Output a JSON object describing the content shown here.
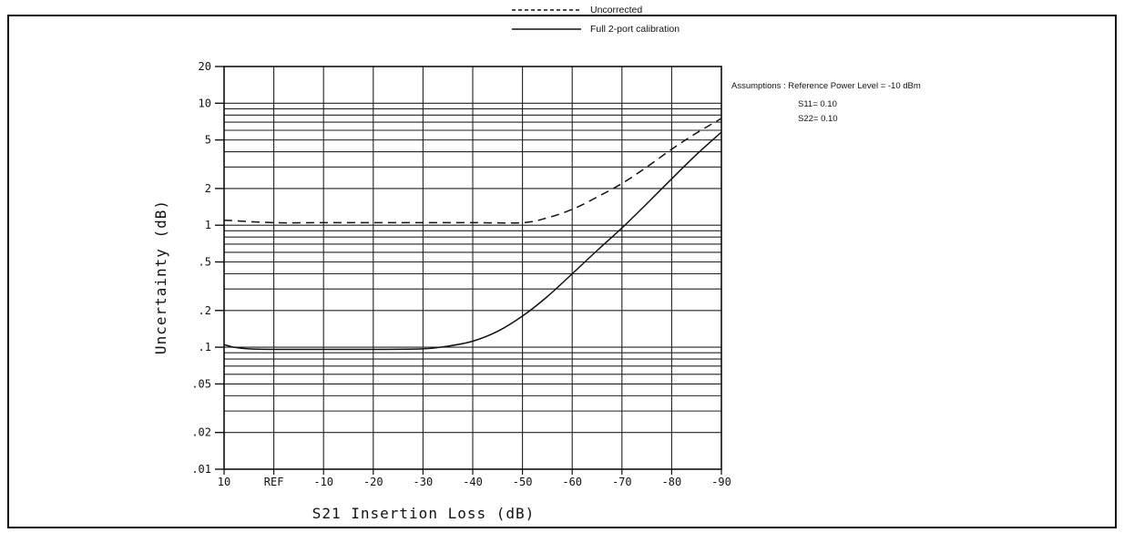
{
  "chart_data": {
    "type": "line",
    "title": "",
    "xlabel": "S21 Insertion Loss (dB)",
    "ylabel": "Uncertainty (dB)",
    "y_scale": "log",
    "ylim": [
      0.01,
      20
    ],
    "x_ticks": [
      "10",
      "REF",
      "-10",
      "-20",
      "-30",
      "-40",
      "-50",
      "-60",
      "-70",
      "-80",
      "-90"
    ],
    "y_ticks": [
      {
        "value": 20,
        "label": "20"
      },
      {
        "value": 10,
        "label": "10"
      },
      {
        "value": 5,
        "label": "5"
      },
      {
        "value": 2,
        "label": "2"
      },
      {
        "value": 1,
        "label": "1"
      },
      {
        "value": 0.5,
        "label": ".5"
      },
      {
        "value": 0.2,
        "label": ".2"
      },
      {
        "value": 0.1,
        "label": ".1"
      },
      {
        "value": 0.05,
        "label": ".05"
      },
      {
        "value": 0.02,
        "label": ".02"
      },
      {
        "value": 0.01,
        "label": ".01"
      }
    ],
    "grid": true,
    "legend_position": "top",
    "series": [
      {
        "name": "Uncorrected",
        "style": "dashed",
        "x": [
          10,
          0,
          -10,
          -20,
          -30,
          -40,
          -50,
          -55,
          -60,
          -65,
          -70,
          -75,
          -80,
          -85,
          -90
        ],
        "y": [
          1.1,
          1.05,
          1.05,
          1.05,
          1.05,
          1.05,
          1.05,
          1.15,
          1.35,
          1.7,
          2.2,
          3.0,
          4.2,
          5.7,
          7.5
        ]
      },
      {
        "name": "Full 2-port calibration",
        "style": "solid",
        "x": [
          10,
          8,
          5,
          0,
          -10,
          -20,
          -30,
          -35,
          -40,
          -45,
          -50,
          -55,
          -60,
          -65,
          -70,
          -75,
          -80,
          -85,
          -90
        ],
        "y": [
          0.105,
          0.1,
          0.097,
          0.096,
          0.096,
          0.096,
          0.097,
          0.102,
          0.112,
          0.135,
          0.18,
          0.26,
          0.4,
          0.62,
          0.95,
          1.5,
          2.4,
          3.8,
          5.8
        ]
      }
    ],
    "annotations": {
      "line1": "Assumptions : Reference Power Level = -10 dBm",
      "line2": "S11= 0.10",
      "line3": "S22= 0.10"
    }
  },
  "colors": {
    "ink": "#111111",
    "background": "#ffffff"
  }
}
